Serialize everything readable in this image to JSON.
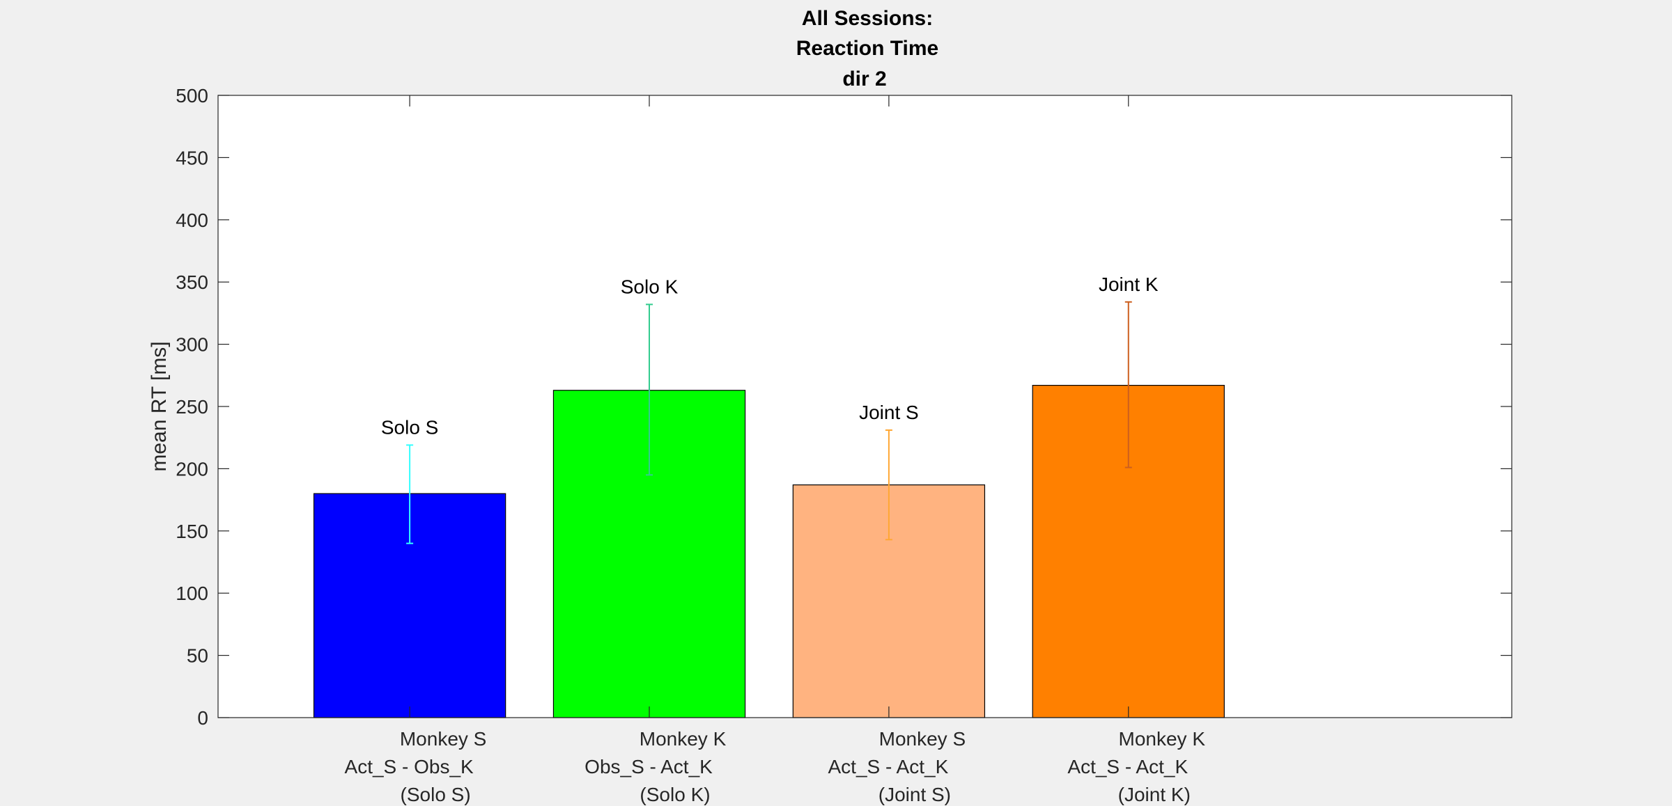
{
  "chart_data": {
    "type": "bar",
    "title": [
      "All Sessions:",
      "Reaction Time",
      "dir 2"
    ],
    "xlabel": "",
    "ylabel": "mean RT [ms]",
    "ylim": [
      0,
      500
    ],
    "yticks": [
      "0",
      "50",
      "100",
      "150",
      "200",
      "250",
      "300",
      "350",
      "400",
      "450",
      "500"
    ],
    "grid": false,
    "categories": [
      [
        "Monkey S",
        "Act_S - Obs_K",
        "(Solo S)"
      ],
      [
        "Monkey K",
        "Obs_S - Act_K",
        "(Solo K)"
      ],
      [
        "Monkey S",
        "Act_S - Act_K",
        "(Joint S)"
      ],
      [
        "Monkey K",
        "Act_S - Act_K",
        "(Joint K)"
      ]
    ],
    "bars": [
      {
        "value": 180,
        "err_low": 140,
        "err_high": 219,
        "label": "Solo S",
        "color": "#0000ff",
        "err_color": "#33ffff"
      },
      {
        "value": 263,
        "err_low": 195,
        "err_high": 332,
        "label": "Solo K",
        "color": "#00ff00",
        "err_color": "#33cc8f"
      },
      {
        "value": 187,
        "err_low": 143,
        "err_high": 231,
        "label": "Joint S",
        "color": "#ffb380",
        "err_color": "#ffa733"
      },
      {
        "value": 267,
        "err_low": 201,
        "err_high": 334,
        "label": "Joint K",
        "color": "#ff8000",
        "err_color": "#cc5f1e"
      }
    ],
    "xlim": [
      0.2,
      5.6
    ]
  }
}
